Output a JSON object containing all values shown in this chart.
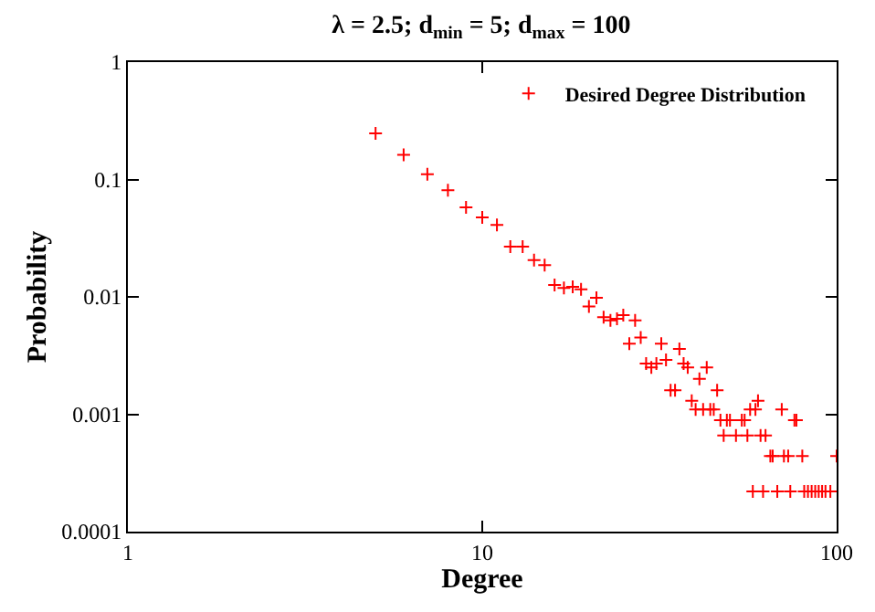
{
  "chart_data": {
    "type": "scatter",
    "title": "λ = 2.5; d$_{min}$ = 5; d$_{max}$ = 100",
    "xlabel": "Degree",
    "ylabel": "Probability",
    "log": "xy",
    "xlim": [
      1,
      100
    ],
    "ylim": [
      0.0001,
      1
    ],
    "xticks": [
      1,
      10,
      100
    ],
    "yticks": [
      0.0001,
      0.001,
      0.01,
      0.1,
      1
    ],
    "legend": "top right",
    "marker": "cross",
    "x": [
      5,
      6,
      7,
      8,
      9,
      10,
      11,
      12,
      13,
      14,
      15,
      16,
      17,
      18,
      19,
      20,
      21,
      22,
      23,
      24,
      25,
      26,
      27,
      28,
      29,
      30,
      31,
      32,
      33,
      34,
      35,
      36,
      37,
      38,
      39,
      40,
      41,
      42,
      43,
      44,
      45,
      46,
      47,
      48,
      49,
      50,
      52,
      54,
      55,
      56,
      57,
      58,
      59,
      60,
      61,
      62,
      63,
      65,
      66,
      68,
      70,
      71,
      73,
      74,
      76,
      77,
      80,
      81,
      83,
      85,
      87,
      89,
      91,
      93,
      96,
      100
    ],
    "series": [
      {
        "name": "Desired Degree Distribution",
        "color": "#ff0000",
        "values": [
          0.247,
          0.162,
          0.111,
          0.081,
          0.058,
          0.0475,
          0.041,
          0.0268,
          0.0268,
          0.0206,
          0.0186,
          0.0126,
          0.0119,
          0.0122,
          0.0116,
          0.0083,
          0.0098,
          0.0067,
          0.0063,
          0.0065,
          0.007,
          0.004,
          0.0063,
          0.0045,
          0.0027,
          0.0025,
          0.0027,
          0.004,
          0.0029,
          0.0016,
          0.0016,
          0.0036,
          0.0027,
          0.0025,
          0.0013,
          0.0011,
          0.002,
          0.0011,
          0.0025,
          0.0011,
          0.0011,
          0.0016,
          0.00089,
          0.00066,
          0.00089,
          0.00089,
          0.00066,
          0.00089,
          0.00089,
          0.00066,
          0.0011,
          0.00022,
          0.0011,
          0.0013,
          0.00066,
          0.00022,
          0.00066,
          0.00044,
          0.00044,
          0.00022,
          0.0011,
          0.00044,
          0.00044,
          0.00022,
          0.00089,
          0.00089,
          0.00044,
          0.00022,
          0.00022,
          0.00022,
          0.00022,
          0.00022,
          0.00022,
          0.00022,
          0.00022,
          0.00044
        ]
      }
    ]
  }
}
